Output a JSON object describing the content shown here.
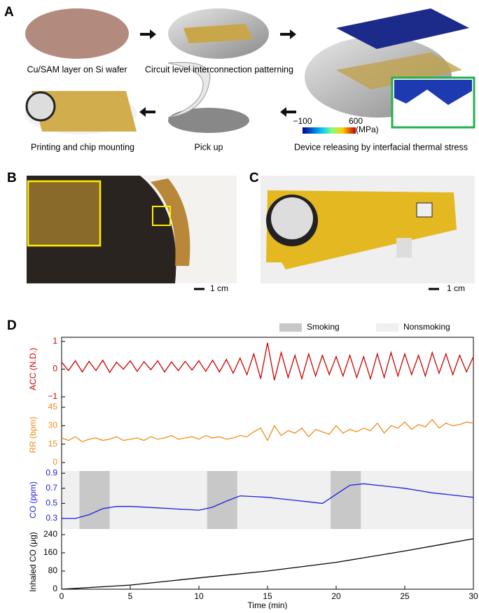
{
  "panels": {
    "a": {
      "label": "A",
      "captions": [
        "Cu/SAM layer on Si wafer",
        "Circuit level interconnection patterning",
        "Printing and chip mounting",
        "Pick up",
        "Device releasing by interfacial thermal stress"
      ],
      "colorbar": {
        "ticks": [
          {
            "value": -100,
            "label": "−100"
          },
          600
        ],
        "unit": "(MPa)"
      }
    },
    "b": {
      "label": "B",
      "scale": "1 cm"
    },
    "c": {
      "label": "C",
      "scale": "1 cm"
    },
    "d": {
      "label": "D",
      "bands": {
        "name": "Smoking",
        "color": "#c8c8c8"
      },
      "background": {
        "name": "Nonsmoking",
        "color": "#f0f0f0"
      }
    }
  },
  "chart_data": [
    {
      "type": "line",
      "ylabel": "ACC (N.D.)",
      "xlim": [
        0,
        30
      ],
      "ylim": [
        -1.1,
        1.1
      ],
      "yticks": [
        1,
        0,
        {
          "value": -1,
          "label": "−1"
        }
      ],
      "x": [
        0,
        0.5,
        1,
        1.5,
        2,
        2.5,
        3,
        3.5,
        4,
        4.5,
        5,
        5.5,
        6,
        6.5,
        7,
        7.5,
        8,
        8.5,
        9,
        9.5,
        10,
        10.5,
        11,
        11.5,
        12,
        12.5,
        13,
        13.5,
        14,
        14.5,
        15,
        15.5,
        16,
        16.5,
        17,
        17.5,
        18,
        18.5,
        19,
        19.5,
        20,
        20.5,
        21,
        21.5,
        22,
        22.5,
        23,
        23.5,
        24,
        24.5,
        25,
        25.5,
        26,
        26.5,
        27,
        27.5,
        28,
        28.5,
        29,
        29.5,
        30
      ],
      "series": [
        {
          "color": "#cc0000",
          "values": [
            0.25,
            -0.05,
            0.3,
            -0.1,
            0.28,
            -0.05,
            0.32,
            -0.12,
            0.25,
            0.0,
            0.3,
            -0.08,
            0.27,
            -0.02,
            0.3,
            -0.1,
            0.26,
            -0.05,
            0.28,
            -0.03,
            0.3,
            -0.08,
            0.32,
            -0.1,
            0.35,
            -0.15,
            0.4,
            -0.2,
            0.55,
            -0.35,
            0.95,
            -0.4,
            0.6,
            -0.3,
            0.5,
            -0.35,
            0.55,
            -0.25,
            0.5,
            -0.2,
            0.45,
            -0.25,
            0.5,
            -0.3,
            0.45,
            -0.35,
            0.55,
            -0.3,
            0.6,
            -0.25,
            0.55,
            -0.2,
            0.5,
            -0.25,
            0.6,
            -0.15,
            0.55,
            -0.2,
            0.5,
            -0.1,
            0.45
          ]
        }
      ]
    },
    {
      "type": "line",
      "ylabel": "RR (bpm)",
      "xlim": [
        0,
        30
      ],
      "ylim": [
        0,
        45
      ],
      "yticks": [
        45,
        30,
        15,
        0
      ],
      "x": [
        0,
        0.5,
        1,
        1.5,
        2,
        2.5,
        3,
        3.5,
        4,
        4.5,
        5,
        5.5,
        6,
        6.5,
        7,
        7.5,
        8,
        8.5,
        9,
        9.5,
        10,
        10.5,
        11,
        11.5,
        12,
        12.5,
        13,
        13.5,
        14,
        14.5,
        15,
        15.5,
        16,
        16.5,
        17,
        17.5,
        18,
        18.5,
        19,
        19.5,
        20,
        20.5,
        21,
        21.5,
        22,
        22.5,
        23,
        23.5,
        24,
        24.5,
        25,
        25.5,
        26,
        26.5,
        27,
        27.5,
        28,
        28.5,
        29,
        29.5,
        30
      ],
      "series": [
        {
          "color": "#f28c1c",
          "values": [
            20,
            18,
            21,
            17,
            19,
            20,
            18,
            19,
            21,
            18,
            19,
            20,
            18,
            21,
            19,
            20,
            22,
            19,
            20,
            21,
            19,
            22,
            20,
            21,
            19,
            20,
            22,
            21,
            25,
            28,
            18,
            30,
            22,
            26,
            24,
            28,
            21,
            27,
            25,
            23,
            30,
            24,
            27,
            25,
            28,
            26,
            32,
            24,
            30,
            28,
            33,
            27,
            31,
            29,
            35,
            28,
            32,
            30,
            31,
            33,
            32
          ]
        }
      ]
    },
    {
      "type": "line",
      "ylabel": "CO (ppm)",
      "xlim": [
        0,
        30
      ],
      "ylim": [
        0.16,
        0.93
      ],
      "yticks": [
        0.9,
        0.7,
        0.5,
        0.3
      ],
      "bands": [
        [
          1.3,
          3.5
        ],
        [
          10.6,
          12.8
        ],
        [
          19.6,
          21.8
        ]
      ],
      "x": [
        0,
        1,
        2,
        3,
        4,
        5,
        6,
        7,
        8,
        9,
        10,
        11,
        12,
        13,
        14,
        15,
        16,
        17,
        18,
        19,
        20,
        21,
        22,
        23,
        24,
        25,
        26,
        27,
        28,
        29,
        30
      ],
      "series": [
        {
          "color": "#1f1fe0",
          "values": [
            0.3,
            0.3,
            0.35,
            0.43,
            0.46,
            0.46,
            0.45,
            0.44,
            0.43,
            0.42,
            0.41,
            0.45,
            0.53,
            0.6,
            0.59,
            0.58,
            0.56,
            0.54,
            0.52,
            0.5,
            0.62,
            0.74,
            0.76,
            0.74,
            0.72,
            0.7,
            0.67,
            0.64,
            0.62,
            0.6,
            0.58
          ]
        }
      ]
    },
    {
      "type": "line",
      "ylabel": "Inhaled CO (μg)",
      "xlim": [
        0,
        30
      ],
      "ylim": [
        0,
        240
      ],
      "yticks": [
        240,
        160,
        80,
        0
      ],
      "xticks": [
        0,
        5,
        10,
        15,
        20,
        25,
        30
      ],
      "xlabel": "Time (min)",
      "x": [
        0,
        5,
        10,
        15,
        20,
        25,
        30
      ],
      "series": [
        {
          "color": "#000000",
          "values": [
            0,
            18,
            50,
            80,
            118,
            168,
            222
          ]
        }
      ]
    }
  ]
}
